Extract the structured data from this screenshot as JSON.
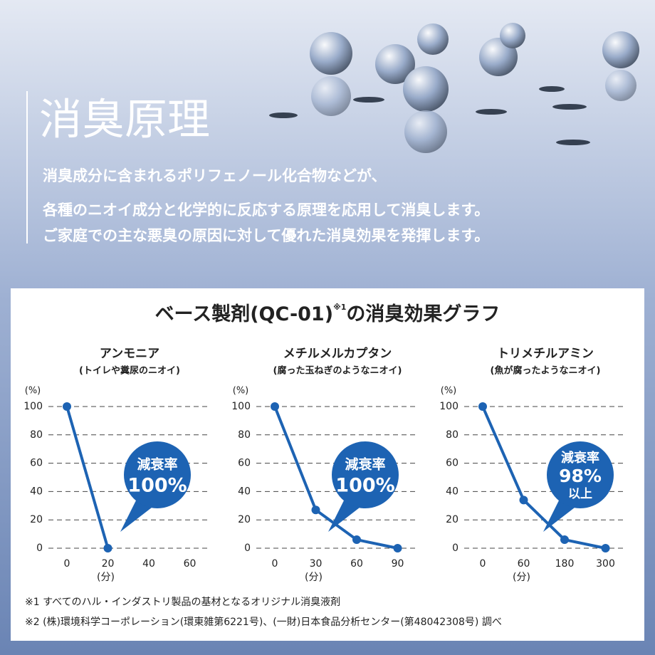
{
  "header": {
    "title": "消臭原理",
    "lines": [
      "消臭成分に含まれるポリフェノール化合物などが、",
      "各種のニオイ成分と化学的に反応する原理を応用して消臭します。",
      "ご家庭での主な悪臭の原因に対して優れた消臭効果を発揮します。"
    ]
  },
  "panel": {
    "title": "ベース製剤(QC-01)",
    "title_note": "※1",
    "title_end": "の消臭効果グラフ"
  },
  "chart_data": [
    {
      "type": "line",
      "title": "アンモニア",
      "subtitle": "(トイレや糞尿のニオイ)",
      "y_unit": "(%)",
      "x_label": "(分)",
      "categories": [
        0,
        20,
        40,
        60
      ],
      "values": [
        100,
        0,
        null,
        null
      ],
      "color": "#1d63b3",
      "ylim": [
        0,
        100
      ],
      "yticks": [
        0,
        20,
        40,
        60,
        80,
        100
      ],
      "grid": true,
      "badge": [
        "減衰率",
        "100%"
      ]
    },
    {
      "type": "line",
      "title": "メチルメルカプタン",
      "subtitle": "(腐った玉ねぎのようなニオイ)",
      "y_unit": "(%)",
      "x_label": "(分)",
      "categories": [
        0,
        30,
        60,
        90
      ],
      "values": [
        100,
        27,
        6,
        0
      ],
      "color": "#1d63b3",
      "ylim": [
        0,
        100
      ],
      "yticks": [
        0,
        20,
        40,
        60,
        80,
        100
      ],
      "grid": true,
      "badge": [
        "減衰率",
        "100%"
      ]
    },
    {
      "type": "line",
      "title": "トリメチルアミン",
      "subtitle": "(魚が腐ったようなニオイ)",
      "y_unit": "(%)",
      "x_label": "(分)",
      "categories": [
        0,
        60,
        180,
        300
      ],
      "values": [
        100,
        34,
        6,
        0
      ],
      "color": "#1d63b3",
      "ylim": [
        0,
        100
      ],
      "yticks": [
        0,
        20,
        40,
        60,
        80,
        100
      ],
      "grid": true,
      "badge": [
        "減衰率",
        "98%",
        "以上"
      ]
    }
  ],
  "footnotes": [
    "※1 すべてのハル・インダストリ製品の基材となるオリジナル消臭液剤",
    "※2 (株)環境科学コーポレーション(環東雑第6221号)、(一財)日本食品分析センター(第48042308号) 調べ"
  ]
}
